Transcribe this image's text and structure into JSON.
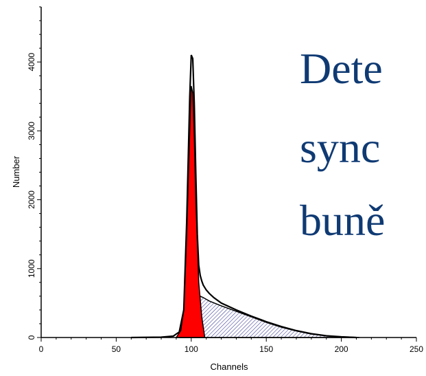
{
  "slide": {
    "title_lines": [
      "Dete",
      "sync",
      "buně"
    ],
    "title_color": "#0f3a73"
  },
  "chart_data": {
    "type": "area",
    "xlabel": "Channels",
    "ylabel": "Number",
    "xlim": [
      0,
      250
    ],
    "ylim": [
      0,
      4800
    ],
    "x_ticks": [
      0,
      50,
      100,
      150,
      200,
      250
    ],
    "y_ticks": [
      0,
      1000,
      2000,
      3000,
      4000
    ],
    "grid": false,
    "series": [
      {
        "style": "red-filled",
        "color": "#ff0000",
        "x": [
          90,
          93,
          95,
          97,
          99,
          100,
          101,
          102,
          103,
          104,
          105,
          107,
          109
        ],
        "y": [
          0,
          100,
          400,
          1500,
          3000,
          3650,
          3550,
          2900,
          2000,
          1400,
          800,
          300,
          0
        ]
      },
      {
        "style": "hatched",
        "color": "#333399",
        "x": [
          92,
          95,
          98,
          100,
          103,
          105,
          106,
          108,
          112,
          120,
          130,
          140,
          150,
          160,
          170,
          180,
          190,
          200,
          210,
          212
        ],
        "y": [
          0,
          30,
          120,
          230,
          420,
          580,
          600,
          580,
          530,
          460,
          380,
          300,
          220,
          150,
          95,
          50,
          25,
          10,
          3,
          0
        ]
      },
      {
        "style": "outline",
        "color": "#000000",
        "x": [
          60,
          80,
          88,
          92,
          95,
          97,
          99,
          100,
          101,
          102,
          103,
          104,
          105,
          106,
          107,
          108,
          110,
          112,
          115,
          120,
          130,
          140,
          150,
          160,
          170,
          180,
          190,
          200,
          210
        ],
        "y": [
          0,
          5,
          20,
          80,
          400,
          1700,
          3500,
          4100,
          4050,
          3400,
          2400,
          1500,
          1050,
          900,
          820,
          760,
          690,
          640,
          580,
          500,
          400,
          310,
          230,
          160,
          100,
          55,
          25,
          10,
          0
        ]
      }
    ]
  }
}
